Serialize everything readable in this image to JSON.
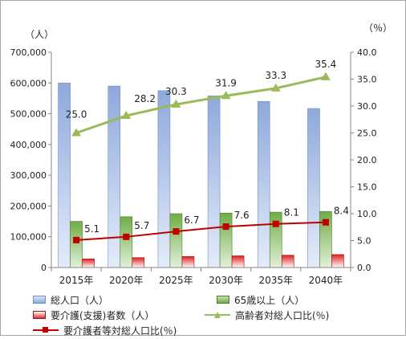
{
  "chart_data": {
    "type": "bar",
    "categories": [
      "2015年",
      "2020年",
      "2025年",
      "2030年",
      "2035年",
      "2040年"
    ],
    "left_unit": "（人）",
    "right_unit": "（％）",
    "left_axis": {
      "ylim": [
        0,
        700000
      ],
      "ticks": [
        "0",
        "100,000",
        "200,000",
        "300,000",
        "400,000",
        "500,000",
        "600,000",
        "700,000"
      ]
    },
    "right_axis": {
      "ylim": [
        0,
        40
      ],
      "ticks": [
        "0.0",
        "5.0",
        "10.0",
        "15.0",
        "20.0",
        "25.0",
        "30.0",
        "35.0",
        "40.0"
      ]
    },
    "series": [
      {
        "name": "総人口（人）",
        "type": "bar",
        "axis": "left",
        "color": "#8ea9db",
        "values": [
          600000,
          590000,
          575000,
          558000,
          540000,
          517000
        ]
      },
      {
        "name": "65歳以上（人）",
        "type": "bar",
        "axis": "left",
        "color": "#70ad47",
        "values": [
          150000,
          165000,
          175000,
          177000,
          180000,
          182000
        ]
      },
      {
        "name": "要介護(支援)者数（人）",
        "type": "bar",
        "axis": "left",
        "color": "#e03030",
        "values": [
          28000,
          32000,
          36000,
          38000,
          40000,
          42000
        ]
      },
      {
        "name": "高齢者対総人口比(％)",
        "type": "line",
        "axis": "right",
        "color": "#9bbb59",
        "marker": "triangle",
        "values": [
          25.0,
          28.2,
          30.3,
          31.9,
          33.3,
          35.4
        ],
        "labels": [
          "25.0",
          "28.2",
          "30.3",
          "31.9",
          "33.3",
          "35.4"
        ]
      },
      {
        "name": "要介護者等対総人口比(％)",
        "type": "line",
        "axis": "right",
        "color": "#c00000",
        "marker": "square",
        "values": [
          5.1,
          5.7,
          6.7,
          7.6,
          8.1,
          8.4
        ],
        "labels": [
          "5.1",
          "5.7",
          "6.7",
          "7.6",
          "8.1",
          "8.4"
        ]
      }
    ],
    "grid": false,
    "legend_position": "bottom"
  }
}
